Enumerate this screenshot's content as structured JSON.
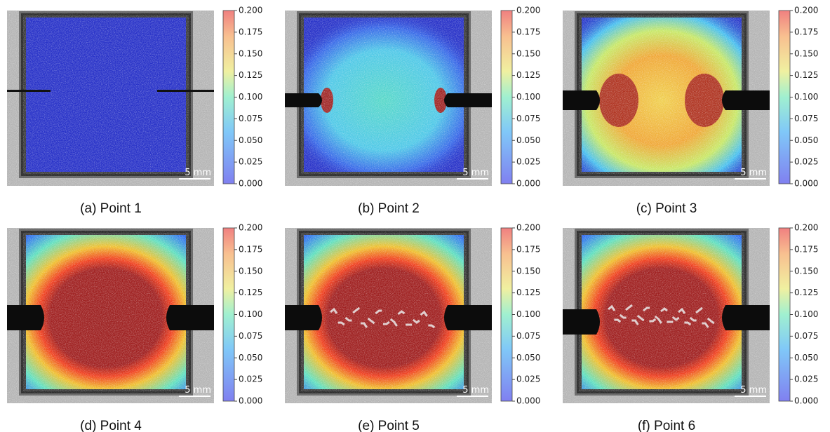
{
  "panels": [
    {
      "caption": "(a) Point 1",
      "level": 1
    },
    {
      "caption": "(b) Point 2",
      "level": 2
    },
    {
      "caption": "(c) Point 3",
      "level": 3
    },
    {
      "caption": "(d) Point 4",
      "level": 4
    },
    {
      "caption": "(e) Point 5",
      "level": 5
    },
    {
      "caption": "(f) Point 6",
      "level": 6
    }
  ],
  "colorbar": {
    "ticks": [
      {
        "value": 0,
        "label": "0.000"
      },
      {
        "value": 0.025,
        "label": "0.025"
      },
      {
        "value": 0.05,
        "label": "0.050"
      },
      {
        "value": 0.075,
        "label": "0.075"
      },
      {
        "value": 0.1,
        "label": "0.100"
      },
      {
        "value": 0.125,
        "label": "0.125"
      },
      {
        "value": 0.15,
        "label": "0.150"
      },
      {
        "value": 0.175,
        "label": "0.175"
      },
      {
        "value": 0.2,
        "label": "0.200"
      }
    ]
  },
  "scale_bar": "5 mm"
}
